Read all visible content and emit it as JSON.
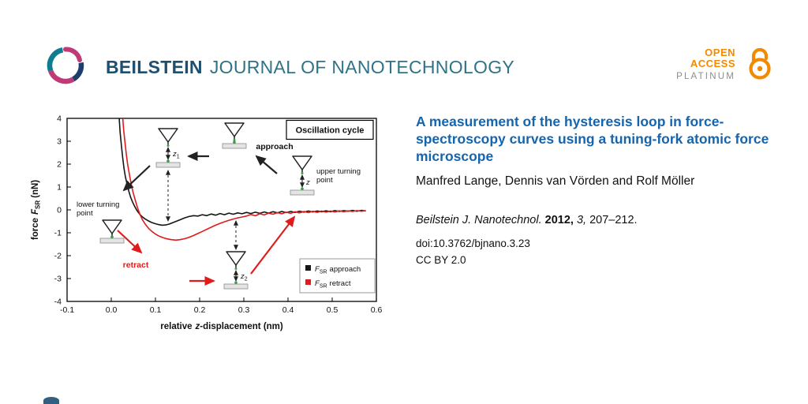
{
  "header": {
    "brand_bold": "BEILSTEIN",
    "brand_rest": "JOURNAL OF NANOTECHNOLOGY",
    "open_access": {
      "open": "OPEN",
      "access": "ACCESS",
      "platinum": "PLATINUM"
    }
  },
  "article": {
    "title": "A measurement of the hysteresis loop in force-spectroscopy curves using a tuning-fork atomic force microscope",
    "authors": "Manfred Lange, Dennis van Vörden and Rolf Möller",
    "citation": {
      "journal": "Beilstein J. Nanotechnol.",
      "year": "2012,",
      "volume": "3,",
      "pages": "207–212."
    },
    "doi": "doi:10.3762/bjnano.3.23",
    "license": "CC BY 2.0"
  },
  "colors": {
    "title_blue": "#1565AE",
    "brand_navy": "#1D4F70",
    "brand_teal": "#2F7386",
    "oa_orange": "#F18A00",
    "platinum_gray": "#8C8C8C",
    "curve_black": "#151515",
    "curve_red": "#E01B1B"
  },
  "chart_data": {
    "type": "line",
    "xlabel": "relative z-displacement (nm)",
    "ylabel": "force FSR (nN)",
    "xlabel_parts": {
      "pre": "relative",
      "z": "z",
      "post": "-displacement (nm)"
    },
    "ylabel_parts": {
      "pre": "force",
      "f": "F",
      "sub": "SR",
      "post": "(nN)"
    },
    "xlim": [
      -0.1,
      0.6
    ],
    "ylim": [
      -4,
      4
    ],
    "grid": false,
    "x_ticks": [
      -0.1,
      0,
      0.1,
      0.2,
      0.3,
      0.4,
      0.5,
      0.6
    ],
    "x_tick_labels": [
      "-0.1",
      "0.0",
      "0.1",
      "0.2",
      "0.3",
      "0.4",
      "0.5",
      "0.6"
    ],
    "y_ticks": [
      -4,
      -3,
      -2,
      -1,
      0,
      1,
      2,
      3,
      4
    ],
    "y_tick_labels": [
      "-4",
      "-3",
      "-2",
      "-1",
      "0",
      "1",
      "2",
      "3",
      "4"
    ],
    "series": [
      {
        "key": "approach",
        "name": "FSR approach",
        "color": "#151515",
        "x": [
          0.018,
          0.02,
          0.023,
          0.026,
          0.029,
          0.032,
          0.036,
          0.04,
          0.044,
          0.048,
          0.053,
          0.058,
          0.064,
          0.07,
          0.077,
          0.084,
          0.091,
          0.099,
          0.107,
          0.115,
          0.123,
          0.131,
          0.139,
          0.148,
          0.157,
          0.166,
          0.176,
          0.186,
          0.196,
          0.206,
          0.216,
          0.226,
          0.236,
          0.246,
          0.256,
          0.266,
          0.276,
          0.286,
          0.296,
          0.306,
          0.316,
          0.326,
          0.336,
          0.346,
          0.356,
          0.366,
          0.376,
          0.386,
          0.396,
          0.406,
          0.416,
          0.426,
          0.436,
          0.446,
          0.456,
          0.466,
          0.476,
          0.486,
          0.496,
          0.506,
          0.516,
          0.526,
          0.536,
          0.546,
          0.556,
          0.566,
          0.576
        ],
        "y": [
          4.0,
          3.4,
          2.8,
          2.25,
          1.8,
          1.45,
          1.1,
          0.8,
          0.55,
          0.35,
          0.15,
          -0.02,
          -0.18,
          -0.3,
          -0.4,
          -0.48,
          -0.55,
          -0.6,
          -0.64,
          -0.67,
          -0.66,
          -0.62,
          -0.56,
          -0.49,
          -0.42,
          -0.35,
          -0.29,
          -0.25,
          -0.27,
          -0.21,
          -0.25,
          -0.18,
          -0.23,
          -0.16,
          -0.21,
          -0.14,
          -0.19,
          -0.13,
          -0.17,
          -0.11,
          -0.16,
          -0.1,
          -0.15,
          -0.09,
          -0.14,
          -0.08,
          -0.13,
          -0.07,
          -0.12,
          -0.07,
          -0.11,
          -0.06,
          -0.1,
          -0.05,
          -0.09,
          -0.05,
          -0.08,
          -0.04,
          -0.08,
          -0.03,
          -0.07,
          -0.03,
          -0.06,
          -0.02,
          -0.06,
          -0.02,
          -0.05
        ]
      },
      {
        "key": "retract",
        "name": "FSR retract",
        "color": "#E01B1B",
        "x": [
          0.026,
          0.028,
          0.031,
          0.034,
          0.037,
          0.041,
          0.045,
          0.049,
          0.054,
          0.059,
          0.065,
          0.071,
          0.078,
          0.085,
          0.093,
          0.101,
          0.109,
          0.118,
          0.127,
          0.136,
          0.146,
          0.156,
          0.166,
          0.176,
          0.186,
          0.196,
          0.206,
          0.216,
          0.226,
          0.236,
          0.246,
          0.256,
          0.266,
          0.276,
          0.286,
          0.296,
          0.306,
          0.316,
          0.326,
          0.336,
          0.346,
          0.356,
          0.366,
          0.376,
          0.386,
          0.396,
          0.406,
          0.416,
          0.426,
          0.436,
          0.446,
          0.456,
          0.466,
          0.476,
          0.486,
          0.496,
          0.506,
          0.516,
          0.526,
          0.536,
          0.546,
          0.556,
          0.566,
          0.576
        ],
        "y": [
          4.0,
          3.5,
          2.95,
          2.45,
          2.0,
          1.55,
          1.15,
          0.8,
          0.45,
          0.12,
          -0.2,
          -0.45,
          -0.65,
          -0.82,
          -0.96,
          -1.07,
          -1.15,
          -1.22,
          -1.27,
          -1.3,
          -1.32,
          -1.3,
          -1.26,
          -1.2,
          -1.12,
          -1.03,
          -0.94,
          -0.85,
          -0.76,
          -0.67,
          -0.59,
          -0.52,
          -0.46,
          -0.4,
          -0.35,
          -0.31,
          -0.27,
          -0.2,
          -0.26,
          -0.17,
          -0.22,
          -0.14,
          -0.19,
          -0.12,
          -0.17,
          -0.1,
          -0.15,
          -0.08,
          -0.13,
          -0.07,
          -0.12,
          -0.06,
          -0.11,
          -0.05,
          -0.1,
          -0.05,
          -0.09,
          -0.04,
          -0.08,
          -0.04,
          -0.07,
          -0.03,
          -0.06,
          -0.03
        ]
      }
    ],
    "legend": [
      {
        "symbol": "F",
        "sub": "SR",
        "label": "approach",
        "color": "#151515"
      },
      {
        "symbol": "F",
        "sub": "SR",
        "label": "retract",
        "color": "#E01B1B"
      }
    ],
    "annotations": {
      "box_label": "Oscillation cycle",
      "approach": "approach",
      "retract": "retract",
      "upper_line1": "upper turning",
      "upper_line2": "point",
      "lower_line1": "lower turning",
      "lower_line2": "point",
      "z": "z",
      "z1_sub": "1",
      "z2_sub": "2"
    }
  }
}
